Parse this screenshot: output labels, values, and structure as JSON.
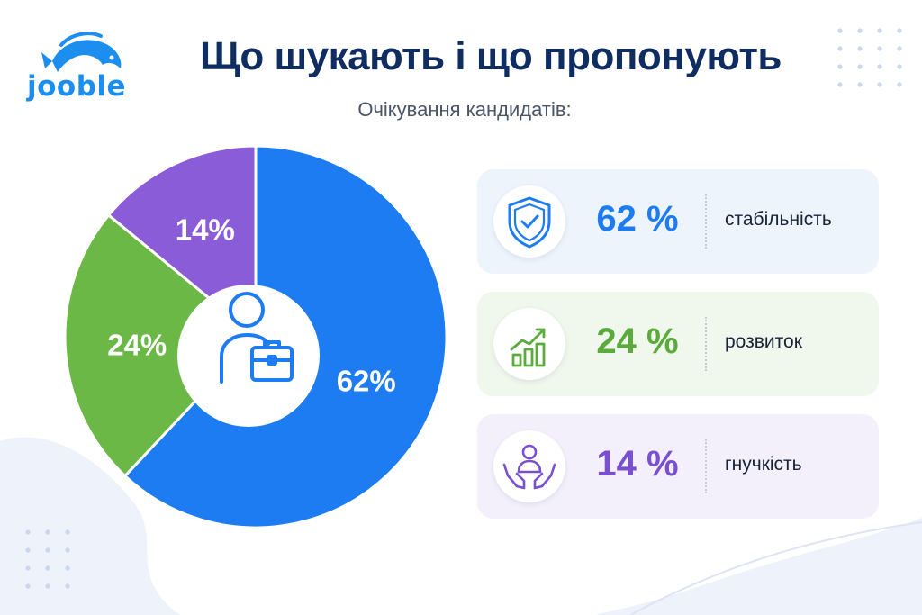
{
  "brand": {
    "logo_text": "jooble",
    "brand_color": "#1b8ef0"
  },
  "header": {
    "title": "Що шукають і що пропонують",
    "subtitle": "Очікування кандидатів:"
  },
  "center_icon": "person-with-briefcase-icon",
  "chart_data": {
    "type": "pie",
    "title": "Що шукають і що пропонують",
    "subtitle": "Очікування кандидатів:",
    "categories": [
      "стабільність",
      "розвиток",
      "гнучкість"
    ],
    "values": [
      62,
      24,
      14
    ],
    "labels": [
      "62%",
      "24%",
      "14%"
    ],
    "colors": [
      "#1d7cf2",
      "#6bb847",
      "#8a5cd8"
    ],
    "donut": true,
    "legend": "right"
  },
  "cards": [
    {
      "percent": "62 %",
      "label": "стабільність",
      "icon": "shield-check-icon",
      "color": "#1d7cf2",
      "bg": "#eef4fc"
    },
    {
      "percent": "24 %",
      "label": "розвиток",
      "icon": "growth-chart-icon",
      "color": "#5aab3c",
      "bg": "#f0f7ec"
    },
    {
      "percent": "14 %",
      "label": "гнучкість",
      "icon": "hands-person-icon",
      "color": "#7a4fd2",
      "bg": "#f3f0fb"
    }
  ]
}
